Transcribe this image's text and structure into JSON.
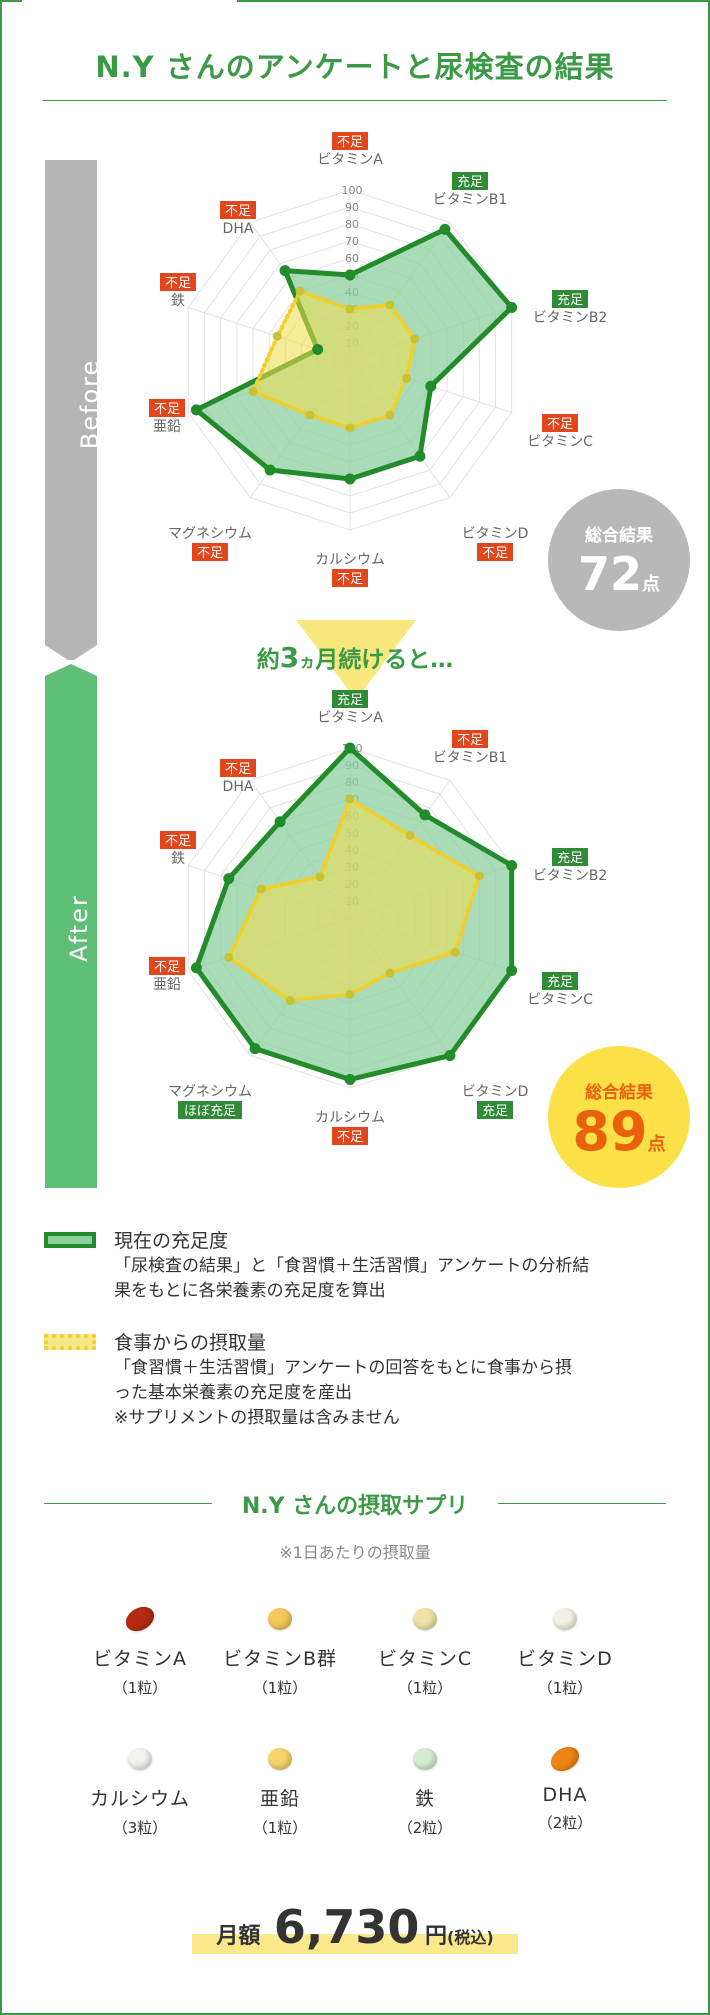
{
  "title": "N.Y さんのアンケートと尿検査の結果",
  "before": {
    "label": "Before",
    "total_label": "総合結果",
    "total_value": "72",
    "total_unit": "点"
  },
  "transition_text": {
    "pre": "約",
    "num": "3",
    "small": "ヵ",
    "post": "月続けると…"
  },
  "after": {
    "label": "After",
    "total_label": "総合結果",
    "total_value": "89",
    "total_unit": "点"
  },
  "colors": {
    "green": "#3a9a45",
    "dark_green": "#228b2a",
    "fill_green": "#8ccfa0",
    "yellow": "#f3dc4a",
    "red_tag": "#e2461d",
    "gray_band": "#b5b5b5",
    "green_band": "#5fbf76",
    "badge_gray": "#b8b8b8",
    "badge_yellow": "#fbe048",
    "badge_orange": "#e9610c"
  },
  "chart_data": [
    {
      "type": "radar",
      "title": "Before",
      "categories": [
        "ビタミンA",
        "ビタミンB1",
        "ビタミンB2",
        "ビタミンC",
        "ビタミンD",
        "カルシウム",
        "マグネシウム",
        "亜鉛",
        "鉄",
        "DHA"
      ],
      "tick_labels": [
        "10",
        "20",
        "30",
        "40",
        "50",
        "60",
        "70",
        "80",
        "90",
        "100"
      ],
      "ylim": [
        0,
        100
      ],
      "status": [
        "不足",
        "充足",
        "充足",
        "不足",
        "不足",
        "不足",
        "不足",
        "不足",
        "不足",
        "不足"
      ],
      "series": [
        {
          "values": [
            50,
            95,
            100,
            50,
            70,
            70,
            80,
            95,
            20,
            65
          ]
        },
        {
          "values": [
            30,
            40,
            40,
            35,
            40,
            40,
            40,
            60,
            45,
            50
          ]
        }
      ]
    },
    {
      "type": "radar",
      "title": "After",
      "categories": [
        "ビタミンA",
        "ビタミンB1",
        "ビタミンB2",
        "ビタミンC",
        "ビタミンD",
        "カルシウム",
        "マグネシウム",
        "亜鉛",
        "鉄",
        "DHA"
      ],
      "tick_labels": [
        "10",
        "20",
        "30",
        "40",
        "50",
        "60",
        "70",
        "80",
        "90",
        "100"
      ],
      "ylim": [
        0,
        100
      ],
      "status": [
        "充足",
        "不足",
        "充足",
        "充足",
        "充足",
        "不足",
        "ほぼ充足",
        "不足",
        "不足",
        "不足"
      ],
      "series": [
        {
          "values": [
            100,
            75,
            100,
            100,
            100,
            95,
            95,
            95,
            75,
            70
          ]
        },
        {
          "values": [
            70,
            60,
            80,
            65,
            40,
            45,
            60,
            75,
            55,
            30
          ]
        }
      ]
    }
  ],
  "legend": [
    {
      "title": "現在の充足度",
      "desc_lines": [
        "「尿検査の結果」と「食習慣＋生活習慣」アンケートの分析結",
        "果をもとに各栄養素の充足度を算出"
      ]
    },
    {
      "title": "食事からの摂取量",
      "desc_lines": [
        "「食習慣＋生活習慣」アンケートの回答をもとに食事から摂",
        "った基本栄養素の充足度を産出",
        "※サプリメントの摂取量は含みません"
      ]
    }
  ],
  "supplements_title": "N.Y さんの摂取サプリ",
  "supplements_note": "※1日あたりの摂取量",
  "supplements": [
    {
      "name": "ビタミンA",
      "qty": "（1粒）",
      "color": "#b42a10"
    },
    {
      "name": "ビタミンB群",
      "qty": "（1粒）",
      "color": "#f5c85a"
    },
    {
      "name": "ビタミンC",
      "qty": "（1粒）",
      "color": "#f0e2a8"
    },
    {
      "name": "ビタミンD",
      "qty": "（1粒）",
      "color": "#f4efe2"
    },
    {
      "name": "カルシウム",
      "qty": "（3粒）",
      "color": "#f3f1ec"
    },
    {
      "name": "亜鉛",
      "qty": "（1粒）",
      "color": "#f6d46c"
    },
    {
      "name": "鉄",
      "qty": "（2粒）",
      "color": "#d6ecd0"
    },
    {
      "name": "DHA",
      "qty": "（2粒）",
      "color": "#ee8516"
    }
  ],
  "price": {
    "label": "月額",
    "value": "6,730",
    "unit": "円",
    "tax": "(税込)"
  }
}
